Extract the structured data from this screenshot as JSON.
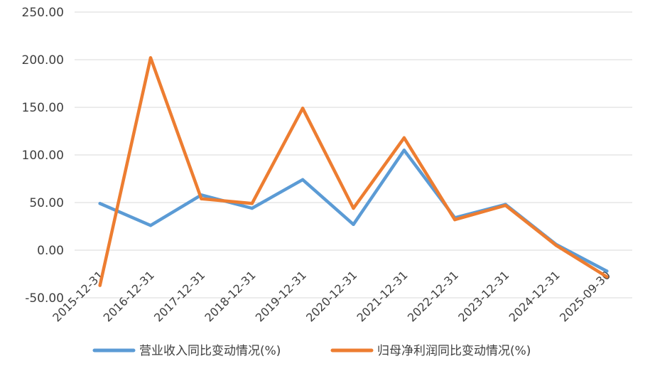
{
  "chart_data": {
    "type": "line",
    "title": "",
    "xlabel": "",
    "ylabel": "",
    "categories": [
      "2015-12-31",
      "2016-12-31",
      "2017-12-31",
      "2018-12-31",
      "2019-12-31",
      "2020-12-31",
      "2021-12-31",
      "2022-12-31",
      "2023-12-31",
      "2024-12-31",
      "2025-09-30"
    ],
    "series": [
      {
        "name": "营业收入同比变动情况(%)",
        "color": "#5b9bd5",
        "values": [
          49,
          26,
          58,
          44,
          74,
          27,
          105,
          34,
          48,
          6,
          -22
        ]
      },
      {
        "name": "归母净利润同比变动情况(%)",
        "color": "#ed7d31",
        "values": [
          -37,
          202,
          54,
          49,
          149,
          44,
          118,
          32,
          47,
          5,
          -28
        ]
      }
    ],
    "ylim": [
      -50,
      250
    ],
    "yticks": [
      "250.00",
      "200.00",
      "150.00",
      "100.00",
      "50.00",
      "0.00",
      "-50.00"
    ],
    "ytick_values": [
      250,
      200,
      150,
      100,
      50,
      0,
      -50
    ],
    "grid": true,
    "legend_position": "bottom"
  }
}
